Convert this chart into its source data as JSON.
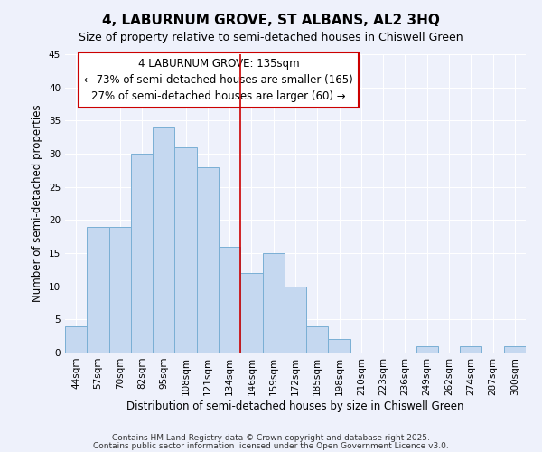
{
  "title": "4, LABURNUM GROVE, ST ALBANS, AL2 3HQ",
  "subtitle": "Size of property relative to semi-detached houses in Chiswell Green",
  "xlabel": "Distribution of semi-detached houses by size in Chiswell Green",
  "ylabel": "Number of semi-detached properties",
  "bin_labels": [
    "44sqm",
    "57sqm",
    "70sqm",
    "82sqm",
    "95sqm",
    "108sqm",
    "121sqm",
    "134sqm",
    "146sqm",
    "159sqm",
    "172sqm",
    "185sqm",
    "198sqm",
    "210sqm",
    "223sqm",
    "236sqm",
    "249sqm",
    "262sqm",
    "274sqm",
    "287sqm",
    "300sqm"
  ],
  "bar_values": [
    4,
    19,
    19,
    30,
    34,
    31,
    28,
    16,
    12,
    15,
    10,
    4,
    2,
    0,
    0,
    0,
    1,
    0,
    1,
    0,
    1
  ],
  "bar_color": "#c5d8f0",
  "bar_edge_color": "#7aafd4",
  "vline_x_idx": 7,
  "vline_color": "#cc0000",
  "ylim": [
    0,
    45
  ],
  "yticks": [
    0,
    5,
    10,
    15,
    20,
    25,
    30,
    35,
    40,
    45
  ],
  "annotation_title": "4 LABURNUM GROVE: 135sqm",
  "annotation_line1": "← 73% of semi-detached houses are smaller (165)",
  "annotation_line2": "27% of semi-detached houses are larger (60) →",
  "annotation_box_color": "#ffffff",
  "annotation_box_edge": "#cc0000",
  "footnote1": "Contains HM Land Registry data © Crown copyright and database right 2025.",
  "footnote2": "Contains public sector information licensed under the Open Government Licence v3.0.",
  "background_color": "#eef1fb",
  "grid_color": "#ffffff",
  "title_fontsize": 11,
  "subtitle_fontsize": 9,
  "xlabel_fontsize": 8.5,
  "ylabel_fontsize": 8.5,
  "tick_fontsize": 7.5,
  "annotation_title_fontsize": 9,
  "annotation_body_fontsize": 8.5,
  "footnote_fontsize": 6.5
}
